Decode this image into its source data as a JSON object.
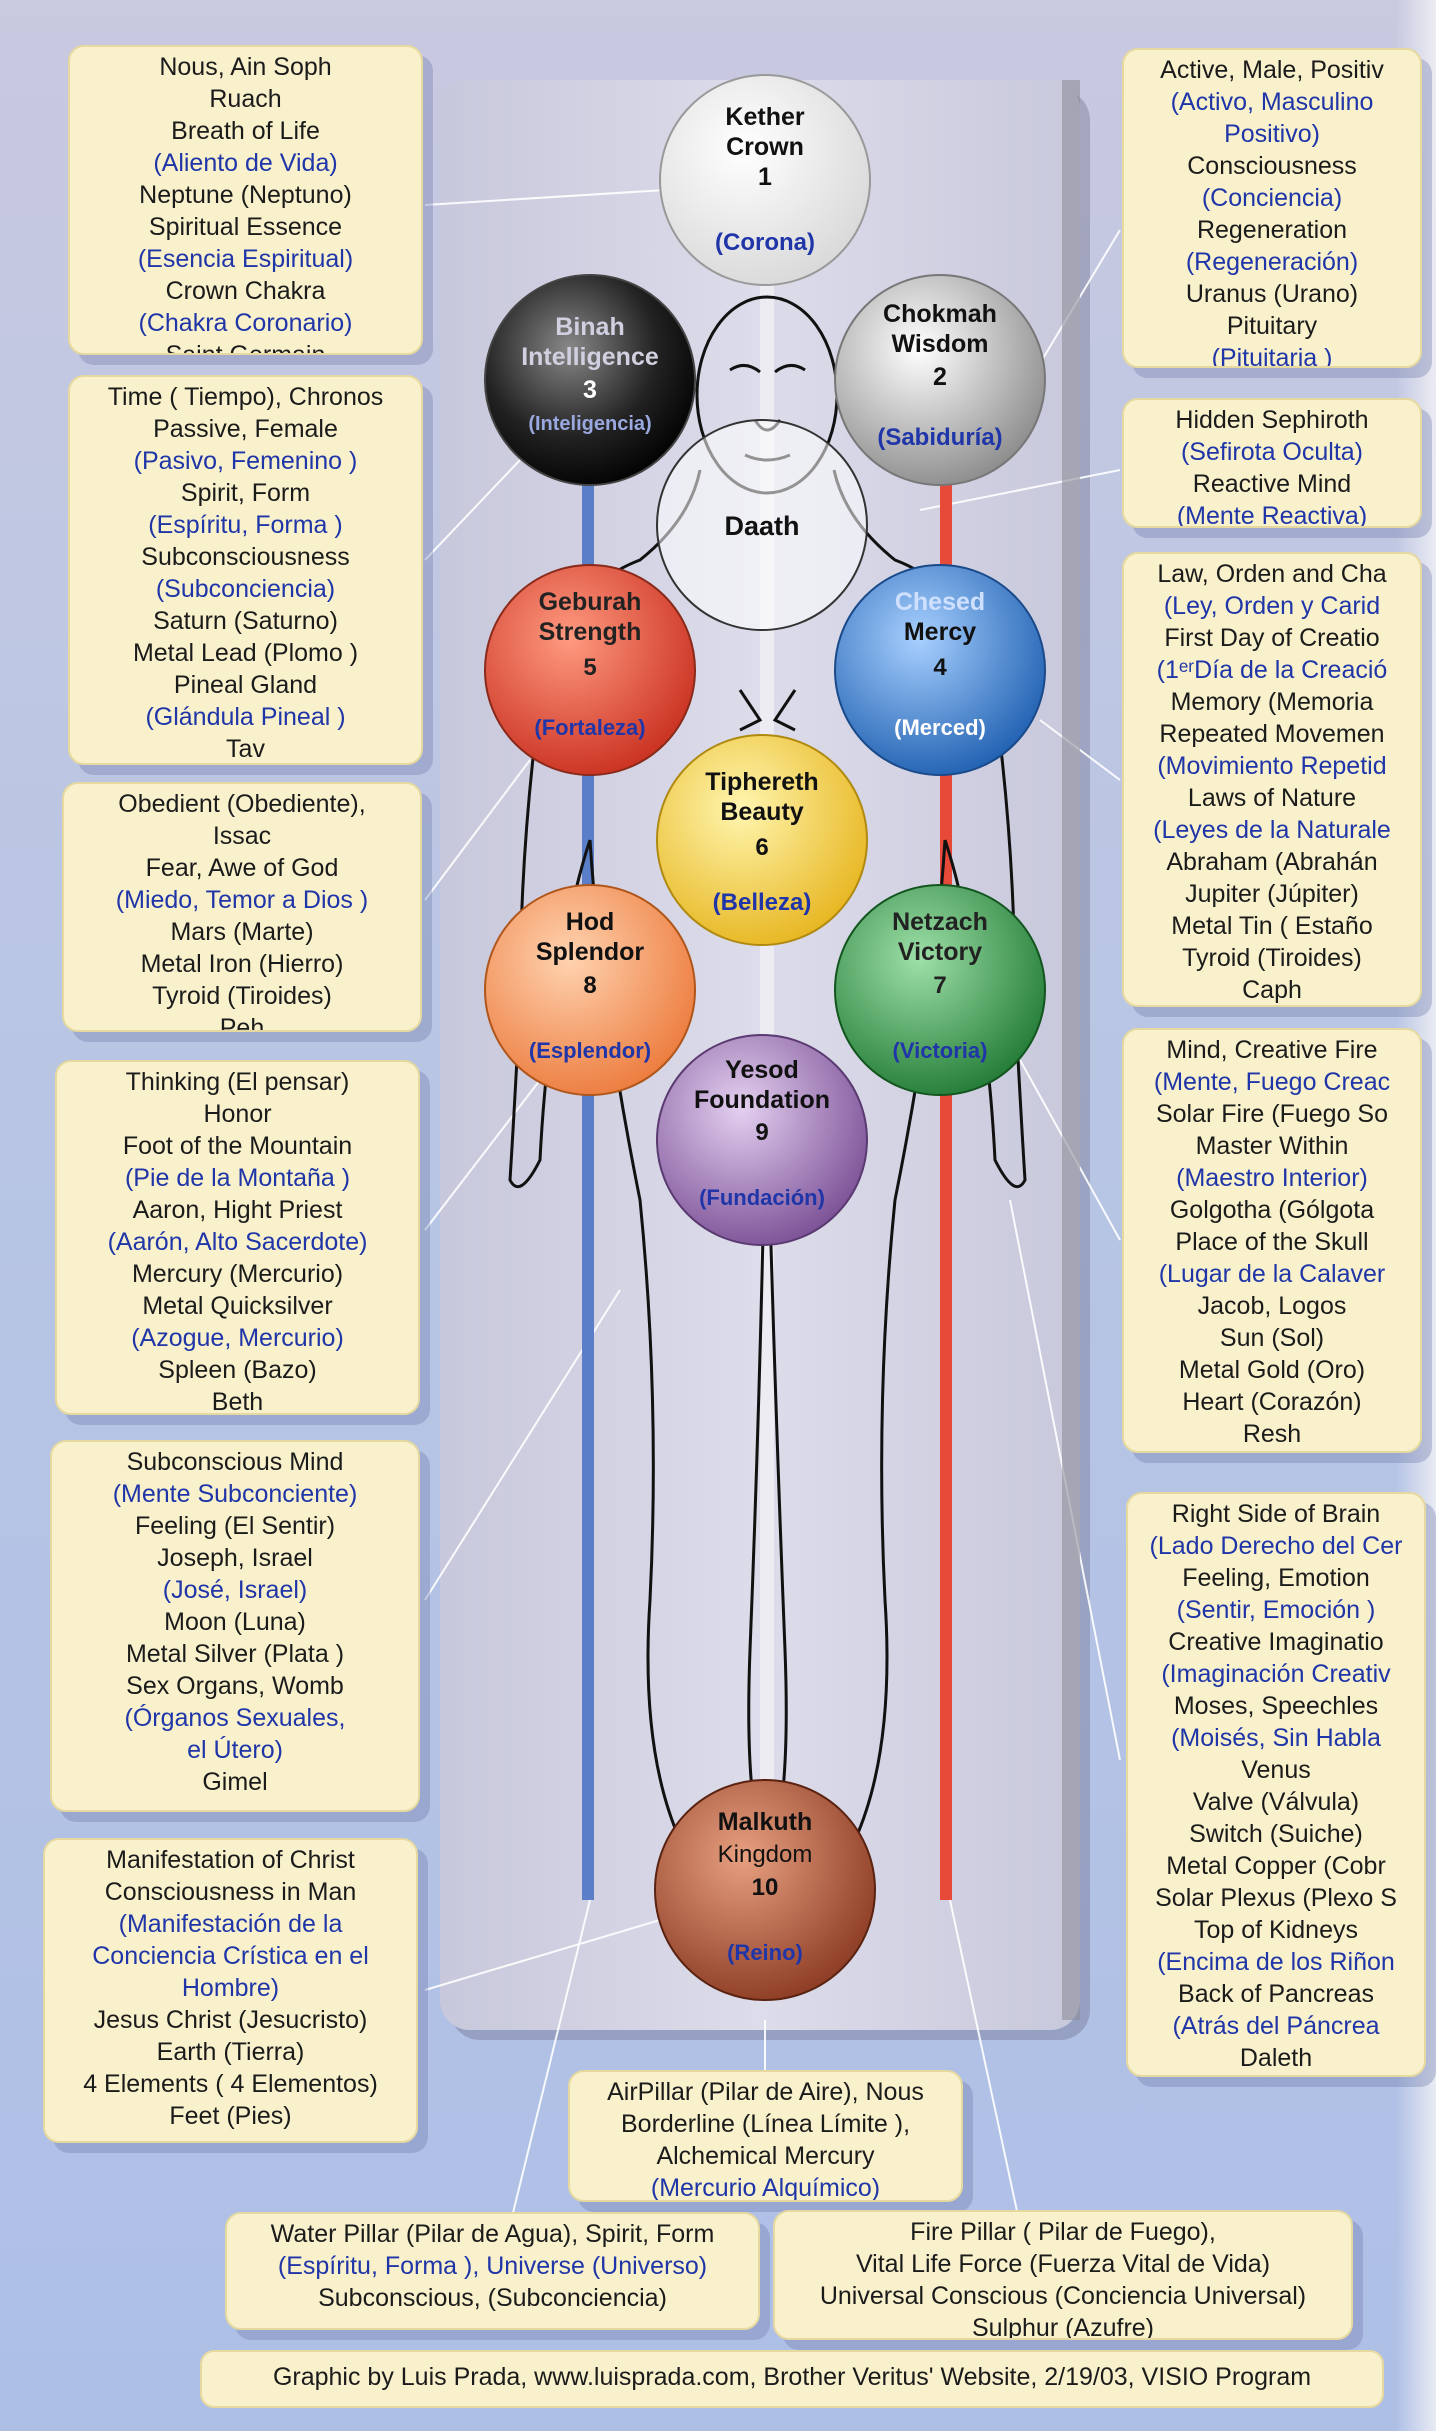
{
  "sephiroth": [
    {
      "name": "Kether",
      "en": "Crown",
      "num": "1",
      "es": "(Corona)",
      "color": "#f6f6f6"
    },
    {
      "name": "Binah",
      "en": "Intelligence",
      "num": "3",
      "es": "(Inteligencia)",
      "color": "#1a1a1a"
    },
    {
      "name": "Chokmah",
      "en": "Wisdom",
      "num": "2",
      "es": "(Sabiduría)",
      "color": "#cfcfcf"
    },
    {
      "name": "Daath",
      "en": "",
      "num": "",
      "es": "",
      "color": "#ffffff"
    },
    {
      "name": "Geburah",
      "en": "Strength",
      "num": "5",
      "es": "(Fortaleza)",
      "color": "#e0503a"
    },
    {
      "name": "Chesed",
      "en": "Mercy",
      "num": "4",
      "es": "(Merced)",
      "color": "#2f7ed0"
    },
    {
      "name": "Tiphereth",
      "en": "Beauty",
      "num": "6",
      "es": "(Belleza)",
      "color": "#f2cf3a"
    },
    {
      "name": "Hod",
      "en": "Splendor",
      "num": "8",
      "es": "(Esplendor)",
      "color": "#f0915a"
    },
    {
      "name": "Netzach",
      "en": "Victory",
      "num": "7",
      "es": "(Victoria)",
      "color": "#3c9a4e"
    },
    {
      "name": "Yesod",
      "en": "Foundation",
      "num": "9",
      "es": "(Fundación)",
      "color": "#8f6aa8"
    },
    {
      "name": "Malkuth",
      "en": "Kingdom",
      "num": "10",
      "es": "(Reino)",
      "color": "#a3543a"
    }
  ],
  "left_boxes": [
    {
      "lines": [
        {
          "t": "Nous, Ain Soph"
        },
        {
          "t": "Ruach"
        },
        {
          "t": "Breath of Life"
        },
        {
          "t": "(Aliento de Vida)",
          "es": true
        },
        {
          "t": "Neptune (Neptuno)"
        },
        {
          "t": "Spiritual Essence"
        },
        {
          "t": "(Esencia Espiritual)",
          "es": true
        },
        {
          "t": "Crown Chakra"
        },
        {
          "t": "(Chakra Coronario)",
          "es": true
        },
        {
          "t": "Saint Germain"
        }
      ]
    },
    {
      "lines": [
        {
          "t": "Time ( Tiempo), Chronos"
        },
        {
          "t": "Passive, Female"
        },
        {
          "t": "(Pasivo, Femenino )",
          "es": true
        },
        {
          "t": "Spirit, Form"
        },
        {
          "t": "(Espíritu, Forma )",
          "es": true
        },
        {
          "t": "Subconsciousness"
        },
        {
          "t": "(Subconciencia)",
          "es": true
        },
        {
          "t": "Saturn (Saturno)"
        },
        {
          "t": "Metal Lead (Plomo )"
        },
        {
          "t": "Pineal Gland"
        },
        {
          "t": "(Glándula Pineal )",
          "es": true
        },
        {
          "t": "Tav"
        }
      ]
    },
    {
      "lines": [
        {
          "t": "Obedient (Obediente),"
        },
        {
          "t": "Issac"
        },
        {
          "t": "Fear, Awe of God"
        },
        {
          "t": "(Miedo, Temor a Dios )",
          "es": true
        },
        {
          "t": "Mars (Marte)"
        },
        {
          "t": "Metal Iron (Hierro)"
        },
        {
          "t": "Tyroid (Tiroides)"
        },
        {
          "t": "Peh"
        }
      ]
    },
    {
      "lines": [
        {
          "t": "Thinking (El pensar)"
        },
        {
          "t": "Honor"
        },
        {
          "t": "Foot of the Mountain"
        },
        {
          "t": "(Pie de la Montaña )",
          "es": true
        },
        {
          "t": "Aaron, Hight Priest"
        },
        {
          "t": "(Aarón, Alto Sacerdote)",
          "es": true
        },
        {
          "t": "Mercury (Mercurio)"
        },
        {
          "t": "Metal Quicksilver"
        },
        {
          "t": "(Azogue, Mercurio)",
          "es": true
        },
        {
          "t": "Spleen (Bazo)"
        },
        {
          "t": "Beth"
        }
      ]
    },
    {
      "lines": [
        {
          "t": "Subconscious Mind"
        },
        {
          "t": "(Mente Subconciente)",
          "es": true
        },
        {
          "t": "Feeling (El Sentir)"
        },
        {
          "t": "Joseph, Israel"
        },
        {
          "t": "(José, Israel)",
          "es": true
        },
        {
          "t": "Moon (Luna)"
        },
        {
          "t": "Metal Silver (Plata )"
        },
        {
          "t": "Sex Organs, Womb"
        },
        {
          "t": "(Órganos Sexuales,",
          "es": true
        },
        {
          "t": "el Útero)",
          "es": true
        },
        {
          "t": "Gimel"
        }
      ]
    },
    {
      "lines": [
        {
          "t": "Manifestation of Christ"
        },
        {
          "t": "Consciousness in Man"
        },
        {
          "t": "(Manifestación de la",
          "es": true
        },
        {
          "t": "Conciencia Crística en el",
          "es": true
        },
        {
          "t": "Hombre)",
          "es": true
        },
        {
          "t": "Jesus Christ (Jesucristo)"
        },
        {
          "t": "Earth (Tierra)"
        },
        {
          "t": "4 Elements ( 4 Elementos)"
        },
        {
          "t": "Feet (Pies)"
        }
      ]
    }
  ],
  "right_boxes": [
    {
      "lines": [
        {
          "t": "Active, Male, Positiv"
        },
        {
          "t": "(Activo, Masculino",
          "es": true
        },
        {
          "t": "Positivo)",
          "es": true
        },
        {
          "t": "Consciousness"
        },
        {
          "t": "(Conciencia)",
          "es": true
        },
        {
          "t": "Regeneration"
        },
        {
          "t": "(Regeneración)",
          "es": true
        },
        {
          "t": "Uranus (Urano)"
        },
        {
          "t": "Pituitary"
        },
        {
          "t": "(Pituitaria )",
          "es": true
        }
      ]
    },
    {
      "lines": [
        {
          "t": "Hidden Sephiroth"
        },
        {
          "t": "(Sefirota Oculta)",
          "es": true
        },
        {
          "t": "Reactive Mind"
        },
        {
          "t": "(Mente Reactiva)",
          "es": true
        }
      ]
    },
    {
      "lines": [
        {
          "t": "Law, Orden and Cha"
        },
        {
          "t": "(Ley, Orden y Carid",
          "es": true
        },
        {
          "t": "First Day of Creatio"
        },
        {
          "t": "(1ᵉʳDía de la Creació",
          "es": true
        },
        {
          "t": "Memory (Memoria"
        },
        {
          "t": "Repeated Movemen"
        },
        {
          "t": "(Movimiento Repetid",
          "es": true
        },
        {
          "t": "Laws of Nature"
        },
        {
          "t": "(Leyes de la Naturale",
          "es": true
        },
        {
          "t": "Abraham (Abrahán"
        },
        {
          "t": "Jupiter (Júpiter)"
        },
        {
          "t": "Metal Tin ( Estaño"
        },
        {
          "t": "Tyroid (Tiroides)"
        },
        {
          "t": "Caph"
        }
      ]
    },
    {
      "lines": [
        {
          "t": "Mind, Creative Fire"
        },
        {
          "t": "(Mente, Fuego Creac",
          "es": true
        },
        {
          "t": "Solar Fire (Fuego So"
        },
        {
          "t": "Master Within"
        },
        {
          "t": "(Maestro Interior)",
          "es": true
        },
        {
          "t": "Golgotha (Gólgota"
        },
        {
          "t": "Place of the Skull"
        },
        {
          "t": "(Lugar de la Calaver",
          "es": true
        },
        {
          "t": "Jacob, Logos"
        },
        {
          "t": "Sun (Sol)"
        },
        {
          "t": "Metal Gold (Oro)"
        },
        {
          "t": "Heart (Corazón)"
        },
        {
          "t": "Resh"
        }
      ]
    },
    {
      "lines": [
        {
          "t": "Right Side of Brain"
        },
        {
          "t": "(Lado Derecho del Cer",
          "es": true
        },
        {
          "t": "Feeling, Emotion"
        },
        {
          "t": "(Sentir, Emoción )",
          "es": true
        },
        {
          "t": "Creative Imaginatio"
        },
        {
          "t": "(Imaginación Creativ",
          "es": true
        },
        {
          "t": "Moses, Speechles"
        },
        {
          "t": "(Moisés, Sin Habla",
          "es": true
        },
        {
          "t": "Venus"
        },
        {
          "t": "Valve (Válvula)"
        },
        {
          "t": "Switch (Suiche)"
        },
        {
          "t": "Metal Copper (Cobr"
        },
        {
          "t": "Solar Plexus (Plexo S"
        },
        {
          "t": "Top of Kidneys"
        },
        {
          "t": "(Encima de los Riñon",
          "es": true
        },
        {
          "t": "Back of Pancreas"
        },
        {
          "t": "(Atrás del Páncrea",
          "es": true
        },
        {
          "t": "Daleth"
        }
      ]
    }
  ],
  "bottom_boxes": [
    {
      "lines": [
        {
          "t": "AirPillar (Pilar de Aire), Nous"
        },
        {
          "t": "Borderline (Línea Límite ),"
        },
        {
          "t": "Alchemical Mercury"
        },
        {
          "t": "(Mercurio Alquímico)",
          "es": true
        }
      ]
    },
    {
      "lines": [
        {
          "t": "Water Pillar (Pilar de Agua), Spirit, Form"
        },
        {
          "t": "(Espíritu, Forma ), Universe (Universo)",
          "es": true
        },
        {
          "t": "Subconscious, (Subconciencia)"
        }
      ]
    },
    {
      "lines": [
        {
          "t": "Fire Pillar ( Pilar de Fuego),"
        },
        {
          "t": "Vital Life Force (Fuerza Vital de Vida)"
        },
        {
          "t": "Universal Conscious (Conciencia Universal)"
        },
        {
          "t": "Sulphur (Azufre)"
        }
      ]
    }
  ],
  "credit": "Graphic by Luis Prada, www.luisprada.com, Brother Veritus' Website, 2/19/03, VISIO Program",
  "colors": {
    "box_bg": "#f8f1cc",
    "spanish_text": "#1f35a8",
    "water_pillar": "#5a7fc8",
    "fire_pillar": "#e84a3a"
  }
}
